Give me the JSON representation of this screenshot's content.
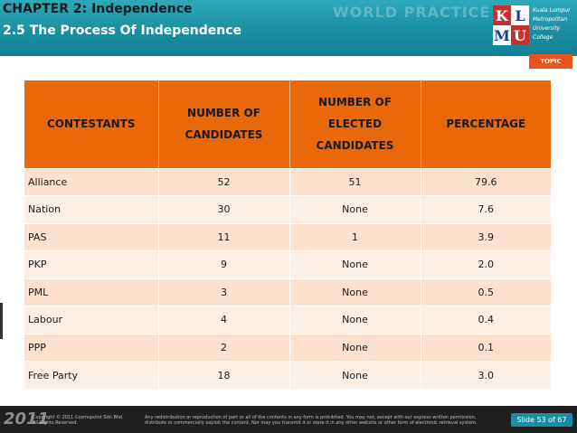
{
  "header": {
    "chapter": "CHAPTER 2: Independence",
    "section": "2.5  The Process Of Independence",
    "watermark": "WORLD PRACTICE",
    "logo": {
      "letters": [
        "K",
        "L",
        "M",
        "U"
      ],
      "lines": [
        "Kuala Lumpur",
        "Metropolitan",
        "University",
        "College"
      ]
    }
  },
  "topic_button": "TOPIC",
  "table": {
    "headers": {
      "contestants": "CONTESTANTS",
      "candidates_1": "NUMBER OF",
      "candidates_2": "CANDIDATES",
      "elected_1": "NUMBER OF",
      "elected_2": "ELECTED",
      "elected_3": "CANDIDATES",
      "percentage": "PERCENTAGE"
    },
    "rows": [
      {
        "party": "Alliance",
        "candidates": "52",
        "elected": "51",
        "percentage": "79.6"
      },
      {
        "party": "Nation",
        "candidates": "30",
        "elected": "None",
        "percentage": "7.6"
      },
      {
        "party": "PAS",
        "candidates": "11",
        "elected": "1",
        "percentage": "3.9"
      },
      {
        "party": "PKP",
        "candidates": "9",
        "elected": "None",
        "percentage": "2.0"
      },
      {
        "party": "PML",
        "candidates": "3",
        "elected": "None",
        "percentage": "0.5"
      },
      {
        "party": "Labour",
        "candidates": "4",
        "elected": "None",
        "percentage": "0.4"
      },
      {
        "party": "PPP",
        "candidates": "2",
        "elected": "None",
        "percentage": "0.1"
      },
      {
        "party": "Free Party",
        "candidates": "18",
        "elected": "None",
        "percentage": "3.0"
      }
    ]
  },
  "footer": {
    "year": "2011",
    "copyright_1": "Copyright © 2011 Cosmopoint Sdn Bhd.",
    "copyright_2": "All Rights Reserved.",
    "notice_1": "Any redistribution or reproduction of part or all of the contents in any form is prohibited. You may not, except with our express written permission,",
    "notice_2": "distribute or commercially exploit the content. Nor may you transmit it or store it in any other website or other form of electronic retrieval system.",
    "slide": "Slide 53 of 67"
  },
  "colors": {
    "header_teal": "#1a8fa1",
    "table_header_orange": "#e8680a",
    "row_odd": "#fde0cd",
    "row_even": "#fcefe6",
    "topic_orange": "#e8541d"
  }
}
